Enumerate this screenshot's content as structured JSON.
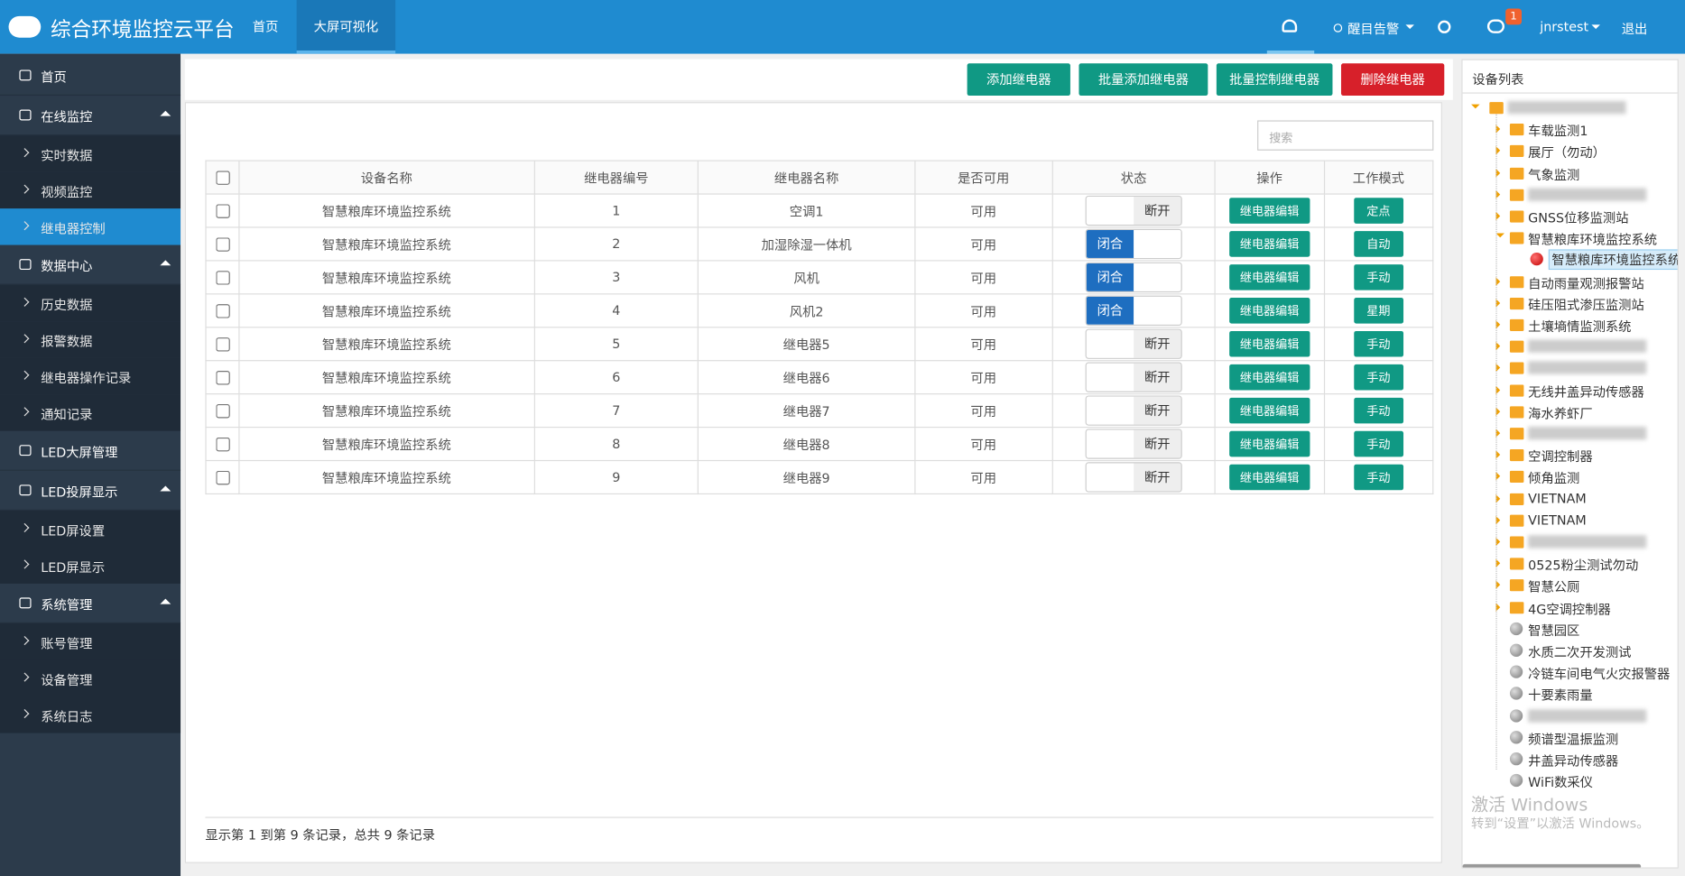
{
  "header": {
    "title": "综合环境监控云平台",
    "nav": [
      "首页",
      "大屏可视化"
    ],
    "alert": "醒目告警",
    "badge": "1",
    "user": "jnrstest",
    "logout": "退出"
  },
  "sidebar": [
    {
      "label": "首页",
      "kind": "top"
    },
    {
      "label": "在线监控",
      "kind": "group",
      "children": [
        {
          "label": "实时数据"
        },
        {
          "label": "视频监控"
        },
        {
          "label": "继电器控制",
          "active": true
        }
      ]
    },
    {
      "label": "数据中心",
      "kind": "group",
      "children": [
        {
          "label": "历史数据"
        },
        {
          "label": "报警数据"
        },
        {
          "label": "继电器操作记录"
        },
        {
          "label": "通知记录"
        }
      ]
    },
    {
      "label": "LED大屏管理",
      "kind": "top"
    },
    {
      "label": "LED投屏显示",
      "kind": "group",
      "children": [
        {
          "label": "LED屏设置"
        },
        {
          "label": "LED屏显示"
        }
      ]
    },
    {
      "label": "系统管理",
      "kind": "group",
      "children": [
        {
          "label": "账号管理"
        },
        {
          "label": "设备管理"
        },
        {
          "label": "系统日志"
        }
      ]
    }
  ],
  "toolbar": [
    {
      "label": "添加继电器",
      "color": "#109984"
    },
    {
      "label": "批量添加继电器",
      "color": "#109984"
    },
    {
      "label": "批量控制继电器",
      "color": "#109984"
    },
    {
      "label": "删除继电器",
      "color": "#d7202a"
    }
  ],
  "table": {
    "search": "搜索",
    "headers": [
      "设备名称",
      "继电器编号",
      "继电器名称",
      "是否可用",
      "状态",
      "操作",
      "工作模式"
    ],
    "rows": [
      [
        "智慧粮库环境监控系统",
        1,
        "空调1",
        "可用",
        {
          "label": "断开",
          "on": false
        },
        "继电器编辑",
        "定点"
      ],
      [
        "智慧粮库环境监控系统",
        2,
        "加湿除湿一体机",
        "可用",
        {
          "label": "闭合",
          "on": true
        },
        "继电器编辑",
        "自动"
      ],
      [
        "智慧粮库环境监控系统",
        3,
        "风机",
        "可用",
        {
          "label": "闭合",
          "on": true
        },
        "继电器编辑",
        "手动"
      ],
      [
        "智慧粮库环境监控系统",
        4,
        "风机2",
        "可用",
        {
          "label": "闭合",
          "on": true
        },
        "继电器编辑",
        "星期"
      ],
      [
        "智慧粮库环境监控系统",
        5,
        "继电器5",
        "可用",
        {
          "label": "断开",
          "on": false
        },
        "继电器编辑",
        "手动"
      ],
      [
        "智慧粮库环境监控系统",
        6,
        "继电器6",
        "可用",
        {
          "label": "断开",
          "on": false
        },
        "继电器编辑",
        "手动"
      ],
      [
        "智慧粮库环境监控系统",
        7,
        "继电器7",
        "可用",
        {
          "label": "断开",
          "on": false
        },
        "继电器编辑",
        "手动"
      ],
      [
        "智慧粮库环境监控系统",
        8,
        "继电器8",
        "可用",
        {
          "label": "断开",
          "on": false
        },
        "继电器编辑",
        "手动"
      ],
      [
        "智慧粮库环境监控系统",
        9,
        "继电器9",
        "可用",
        {
          "label": "断开",
          "on": false
        },
        "继电器编辑",
        "手动"
      ]
    ],
    "footer": "显示第 1 到第 9 条记录，总共 9 条记录"
  },
  "tree": {
    "title": "设备列表",
    "root": {
      "label": null,
      "icon": "folder",
      "children": [
        {
          "label": "车载监测1",
          "icon": "folder"
        },
        {
          "label": "展厅（勿动）",
          "icon": "folder"
        },
        {
          "label": "气象监测",
          "icon": "folder"
        },
        {
          "label": null,
          "icon": "folder"
        },
        {
          "label": "GNSS位移监测站",
          "icon": "folder"
        },
        {
          "label": "智慧粮库环境监控系统",
          "icon": "folder",
          "children": [
            {
              "label": "智慧粮库环境监控系统",
              "icon": "red",
              "selected": true
            }
          ]
        },
        {
          "label": "自动雨量观测报警站",
          "icon": "folder"
        },
        {
          "label": "硅压阻式渗压监测站",
          "icon": "folder"
        },
        {
          "label": "土壤墒情监测系统",
          "icon": "folder"
        },
        {
          "label": null,
          "icon": "folder"
        },
        {
          "label": null,
          "icon": "folder"
        },
        {
          "label": "无线井盖异动传感器",
          "icon": "folder"
        },
        {
          "label": "海水养虾厂",
          "icon": "folder"
        },
        {
          "label": null,
          "icon": "folder"
        },
        {
          "label": "空调控制器",
          "icon": "folder"
        },
        {
          "label": "倾角监测",
          "icon": "folder"
        },
        {
          "label": "VIETNAM",
          "icon": "folder"
        },
        {
          "label": "VIETNAM",
          "icon": "folder"
        },
        {
          "label": null,
          "icon": "folder"
        },
        {
          "label": "0525粉尘测试勿动",
          "icon": "folder"
        },
        {
          "label": "智慧公厕",
          "icon": "folder"
        },
        {
          "label": "4G空调控制器",
          "icon": "folder"
        },
        {
          "label": "智慧园区",
          "icon": "gray"
        },
        {
          "label": "水质二次开发测试",
          "icon": "gray"
        },
        {
          "label": "冷链车间电气火灾报警器",
          "icon": "gray"
        },
        {
          "label": "十要素雨量",
          "icon": "gray"
        },
        {
          "label": null,
          "icon": "gray"
        },
        {
          "label": "频谱型温振监测",
          "icon": "gray"
        },
        {
          "label": "井盖异动传感器",
          "icon": "gray"
        },
        {
          "label": "WiFi数采仪",
          "icon": "gray"
        }
      ]
    }
  },
  "watermark": {
    "line1": "激活 Windows",
    "line2": "转到“设置”以激活 Windows。"
  }
}
